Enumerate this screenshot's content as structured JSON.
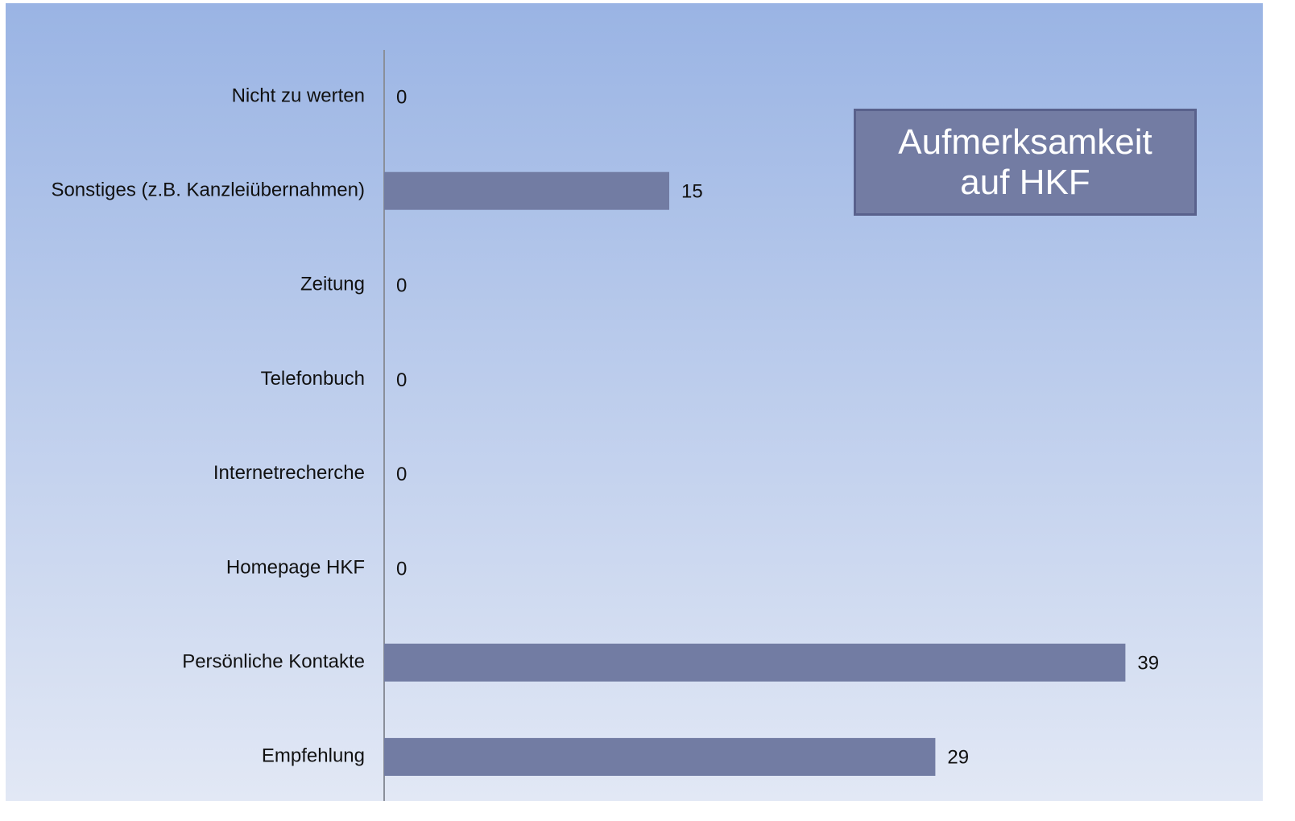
{
  "chart_data": {
    "type": "hbar",
    "title": "Aufmerksamkeit auf HKF",
    "categories": [
      "Nicht zu werten",
      "Sonstiges (z.B. Kanzleiübernahmen)",
      "Zeitung",
      "Telefonbuch",
      "Internetrecherche",
      "Homepage HKF",
      "Persönliche Kontakte",
      "Empfehlung"
    ],
    "values": [
      0,
      15,
      0,
      0,
      0,
      0,
      39,
      29
    ],
    "color": "#727ca3",
    "xlim": [
      0,
      45
    ]
  }
}
